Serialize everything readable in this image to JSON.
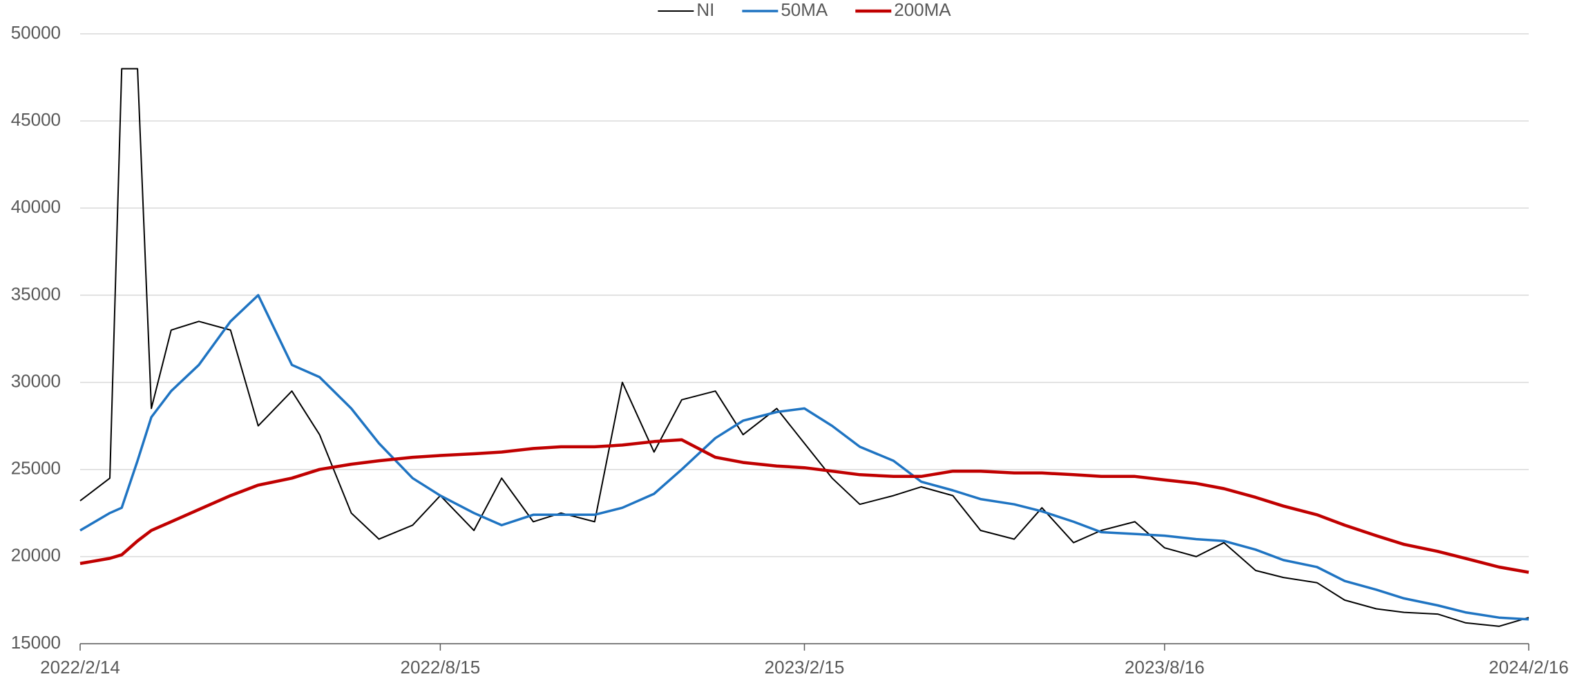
{
  "chart_data": {
    "type": "line",
    "x": [
      "2022/2/14",
      "2022/3/1",
      "2022/3/7",
      "2022/3/15",
      "2022/3/22",
      "2022/4/1",
      "2022/4/15",
      "2022/5/1",
      "2022/5/15",
      "2022/6/1",
      "2022/6/15",
      "2022/7/1",
      "2022/7/15",
      "2022/8/1",
      "2022/8/15",
      "2022/9/1",
      "2022/9/15",
      "2022/10/1",
      "2022/10/15",
      "2022/11/1",
      "2022/11/15",
      "2022/12/1",
      "2022/12/15",
      "2023/1/1",
      "2023/1/15",
      "2023/2/1",
      "2023/2/15",
      "2023/3/1",
      "2023/3/15",
      "2023/4/1",
      "2023/4/15",
      "2023/5/1",
      "2023/5/15",
      "2023/6/1",
      "2023/6/15",
      "2023/7/1",
      "2023/7/15",
      "2023/8/1",
      "2023/8/16",
      "2023/9/1",
      "2023/9/15",
      "2023/10/1",
      "2023/10/15",
      "2023/11/1",
      "2023/11/15",
      "2023/12/1",
      "2023/12/15",
      "2024/1/1",
      "2024/1/15",
      "2024/2/1",
      "2024/2/16"
    ],
    "series": [
      {
        "name": "NI",
        "color": "#000000",
        "width": 2,
        "values": [
          23200,
          24500,
          48000,
          48000,
          28500,
          33000,
          33500,
          33000,
          27500,
          29500,
          27000,
          22500,
          21000,
          21800,
          23500,
          21500,
          24500,
          22000,
          22500,
          22000,
          30000,
          26000,
          29000,
          29500,
          27000,
          28500,
          26500,
          24500,
          23000,
          23500,
          24000,
          23500,
          21500,
          21000,
          22800,
          20800,
          21500,
          22000,
          20500,
          20000,
          20800,
          19200,
          18800,
          18500,
          17500,
          17000,
          16800,
          16700,
          16200,
          16000,
          16500
        ]
      },
      {
        "name": "50MA",
        "color": "#1f74c2",
        "width": 3.5,
        "values": [
          21500,
          22500,
          22800,
          25500,
          28000,
          29500,
          31000,
          33500,
          35000,
          31000,
          30300,
          28500,
          26500,
          24500,
          23500,
          22500,
          21800,
          22400,
          22400,
          22400,
          22800,
          23600,
          25000,
          26800,
          27800,
          28300,
          28500,
          27500,
          26300,
          25500,
          24300,
          23800,
          23300,
          23000,
          22600,
          22000,
          21400,
          21300,
          21200,
          21000,
          20900,
          20400,
          19800,
          19400,
          18600,
          18100,
          17600,
          17200,
          16800,
          16500,
          16400
        ]
      },
      {
        "name": "200MA",
        "color": "#c00000",
        "width": 4.5,
        "values": [
          19600,
          19900,
          20100,
          20900,
          21500,
          22000,
          22700,
          23500,
          24100,
          24500,
          25000,
          25300,
          25500,
          25700,
          25800,
          25900,
          26000,
          26200,
          26300,
          26300,
          26400,
          26600,
          26700,
          25700,
          25400,
          25200,
          25100,
          24900,
          24700,
          24600,
          24600,
          24900,
          24900,
          24800,
          24800,
          24700,
          24600,
          24600,
          24400,
          24200,
          23900,
          23400,
          22900,
          22400,
          21800,
          21200,
          20700,
          20300,
          19900,
          19400,
          19100
        ]
      }
    ],
    "xlim": [
      "2022/2/14",
      "2024/2/16"
    ],
    "xticks": [
      "2022/2/14",
      "2022/8/15",
      "2023/2/15",
      "2023/8/16",
      "2024/2/16"
    ],
    "ylim": [
      15000,
      50000
    ],
    "yticks": [
      15000,
      20000,
      25000,
      30000,
      35000,
      40000,
      45000,
      50000
    ],
    "grid": true,
    "legend": "top"
  }
}
